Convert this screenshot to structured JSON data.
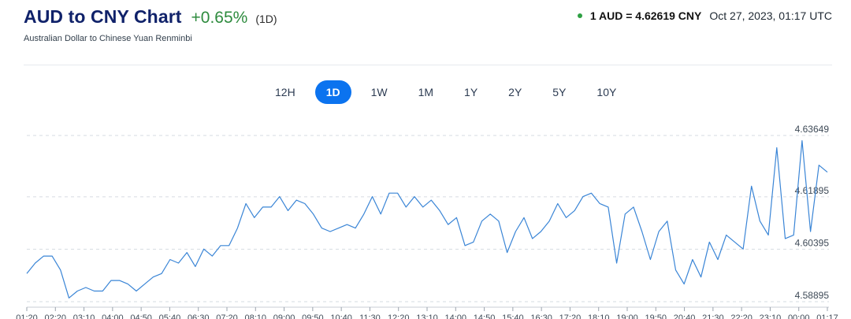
{
  "header": {
    "title": "AUD to CNY Chart",
    "change": "+0.65%",
    "period": "(1D)",
    "subtitle": "Australian Dollar to Chinese Yuan Renminbi",
    "rate": "1 AUD = 4.62619 CNY",
    "timestamp": "Oct 27, 2023, 01:17 UTC"
  },
  "ranges": [
    "12H",
    "1D",
    "1W",
    "1M",
    "1Y",
    "2Y",
    "5Y",
    "10Y"
  ],
  "active_range": "1D",
  "colors": {
    "line": "#3a85d6",
    "accent": "#0b73ef",
    "up": "#2e8b3e",
    "title": "#10226a"
  },
  "chart_data": {
    "type": "line",
    "ylim": [
      4.58895,
      4.63649
    ],
    "yticks": [
      "4.63649",
      "4.61895",
      "4.60395",
      "4.58895"
    ],
    "yticks_values": [
      4.63649,
      4.61895,
      4.60395,
      4.58895
    ],
    "xticks": [
      "01:20",
      "02:20",
      "03:10",
      "04:00",
      "04:50",
      "05:40",
      "06:30",
      "07:20",
      "08:10",
      "09:00",
      "09:50",
      "10:40",
      "11:30",
      "12:20",
      "13:10",
      "14:00",
      "14:50",
      "15:40",
      "16:30",
      "17:20",
      "18:10",
      "19:00",
      "19:50",
      "20:40",
      "21:30",
      "22:20",
      "23:10",
      "00:00",
      "01:17"
    ],
    "series": [
      {
        "values": [
          4.597,
          4.6,
          4.602,
          4.602,
          4.598,
          4.59,
          4.592,
          4.593,
          4.592,
          4.592,
          4.595,
          4.595,
          4.594,
          4.592,
          4.594,
          4.596,
          4.597,
          4.601,
          4.6,
          4.603,
          4.599,
          4.604,
          4.602,
          4.605,
          4.605,
          4.61,
          4.617,
          4.613,
          4.616,
          4.616,
          4.619,
          4.615,
          4.618,
          4.617,
          4.614,
          4.61,
          4.609,
          4.61,
          4.611,
          4.61,
          4.614,
          4.619,
          4.614,
          4.62,
          4.62,
          4.616,
          4.619,
          4.616,
          4.618,
          4.615,
          4.611,
          4.613,
          4.605,
          4.606,
          4.612,
          4.614,
          4.612,
          4.603,
          4.609,
          4.613,
          4.607,
          4.609,
          4.612,
          4.617,
          4.613,
          4.615,
          4.619,
          4.62,
          4.617,
          4.616,
          4.6,
          4.614,
          4.616,
          4.609,
          4.601,
          4.609,
          4.612,
          4.598,
          4.594,
          4.601,
          4.596,
          4.606,
          4.601,
          4.608,
          4.606,
          4.604,
          4.622,
          4.612,
          4.608,
          4.633,
          4.607,
          4.608,
          4.635,
          4.609,
          4.628,
          4.626
        ]
      }
    ]
  }
}
